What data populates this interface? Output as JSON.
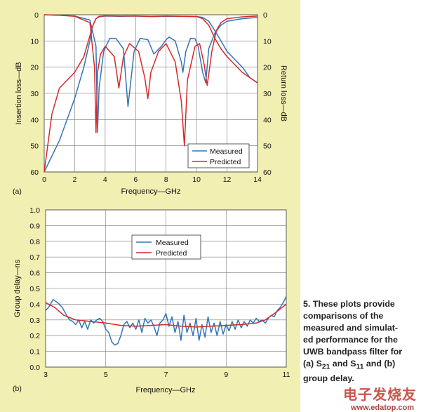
{
  "colors": {
    "measured": "#3374b8",
    "predicted": "#d62a2a",
    "panel": "#f2efb2",
    "grid": "#777777"
  },
  "caption": {
    "lines": [
      "5. These plots provide",
      "comparisons of the",
      "measured and simulat-",
      "ed performance for the",
      "UWB bandpass filter for"
    ],
    "last_a": "(a) S",
    "sub21": "21",
    "and": " and S",
    "sub11": "11",
    "last_b": " and (b)",
    "final": "group delay."
  },
  "watermark": {
    "main": "电子发烧友",
    "url": "www.edatop.com"
  },
  "chart_data": [
    {
      "id": "a",
      "type": "line",
      "panel_label": "(a)",
      "xlabel": "Frequency—GHz",
      "ylabel_left": "Insertion loss—dB",
      "ylabel_right": "Return loss—dB",
      "xlim": [
        0,
        14
      ],
      "ylim": [
        0,
        60
      ],
      "y_inverted": true,
      "xticks": [
        0,
        2,
        4,
        6,
        8,
        10,
        12,
        14
      ],
      "yticks": [
        0,
        10,
        20,
        30,
        40,
        50,
        60
      ],
      "grid": true,
      "legend": {
        "position": "bottom-right",
        "entries": [
          "Measured",
          "Predicted"
        ]
      },
      "series": [
        {
          "name": "Measured S21",
          "role": "measured",
          "x": [
            0,
            1,
            2,
            2.6,
            3,
            3.2,
            3.4,
            3.6,
            4,
            5,
            6,
            7,
            8,
            9,
            10,
            10.4,
            10.8,
            11.2,
            11.6,
            12,
            12.5,
            13,
            13.5,
            14
          ],
          "y": [
            60,
            48,
            32,
            20,
            10,
            4,
            1.5,
            0.8,
            0.5,
            0.6,
            0.5,
            0.7,
            0.6,
            0.6,
            0.7,
            1,
            2.5,
            6,
            10,
            14,
            17,
            20,
            24,
            26
          ]
        },
        {
          "name": "Predicted S21",
          "role": "predicted",
          "x": [
            0,
            0.5,
            1,
            2,
            2.6,
            3,
            3.2,
            3.4,
            3.6,
            4,
            5,
            6,
            7,
            8,
            9,
            10,
            10.4,
            10.8,
            11.2,
            11.6,
            12,
            12.5,
            13,
            13.5,
            14
          ],
          "y": [
            60,
            38,
            28,
            22,
            16,
            8,
            4,
            1.5,
            0.6,
            0.4,
            0.5,
            0.5,
            0.6,
            0.5,
            0.6,
            0.7,
            1.5,
            4,
            9,
            13,
            16,
            19,
            22,
            24,
            26
          ]
        },
        {
          "name": "Measured S11",
          "role": "measured",
          "x": [
            0,
            1,
            2,
            3,
            3.4,
            3.5,
            3.6,
            3.9,
            4.3,
            4.7,
            5.2,
            5.5,
            5.9,
            6.3,
            6.8,
            7.2,
            7.7,
            8,
            8.2,
            8.6,
            9,
            9.1,
            9.3,
            9.6,
            9.9,
            10.1,
            10.4,
            10.6,
            10.8,
            11.2,
            11.6,
            12,
            13,
            14
          ],
          "y": [
            0,
            0.2,
            0.5,
            2,
            12,
            45,
            28,
            14,
            9,
            9,
            13,
            35,
            14,
            9,
            9.5,
            15,
            12,
            9.5,
            8.5,
            10,
            18,
            22,
            14,
            9,
            9.2,
            12,
            22,
            26,
            13,
            7,
            4,
            2.5,
            1.5,
            1
          ]
        },
        {
          "name": "Predicted S11",
          "role": "predicted",
          "x": [
            0,
            1,
            2,
            3,
            3.3,
            3.4,
            3.5,
            3.7,
            4,
            4.6,
            4.9,
            5.2,
            5.6,
            6.2,
            6.6,
            6.8,
            7,
            7.5,
            8,
            8.6,
            9,
            9.2,
            9.4,
            9.9,
            10.2,
            10.5,
            10.7,
            11,
            11.3,
            11.6,
            12,
            13,
            14
          ],
          "y": [
            0,
            0.2,
            0.6,
            3,
            20,
            45,
            22,
            15,
            12,
            16,
            28,
            16,
            11,
            14,
            24,
            32,
            22,
            14,
            11,
            18,
            33,
            50,
            25,
            12,
            11,
            19,
            27,
            14,
            6,
            3,
            1.5,
            0.8,
            0.5
          ]
        }
      ]
    },
    {
      "id": "b",
      "type": "line",
      "panel_label": "(b)",
      "xlabel": "Frequency—GHz",
      "ylabel": "Group delay—ns",
      "xlim": [
        3,
        11
      ],
      "ylim": [
        0,
        1
      ],
      "xticks": [
        3,
        5,
        7,
        9,
        11
      ],
      "yticks": [
        0.0,
        0.1,
        0.2,
        0.3,
        0.4,
        0.5,
        0.6,
        0.7,
        0.8,
        0.9,
        1.0
      ],
      "grid": true,
      "legend": {
        "position": "upper-center",
        "entries": [
          "Measured",
          "Predicted"
        ]
      },
      "series": [
        {
          "name": "Measured",
          "role": "measured",
          "x": [
            3,
            3.1,
            3.25,
            3.4,
            3.55,
            3.7,
            3.8,
            3.9,
            4,
            4.1,
            4.2,
            4.3,
            4.4,
            4.5,
            4.6,
            4.7,
            4.8,
            4.9,
            5,
            5.1,
            5.2,
            5.3,
            5.4,
            5.5,
            5.6,
            5.7,
            5.8,
            5.9,
            6,
            6.1,
            6.2,
            6.3,
            6.4,
            6.5,
            6.6,
            6.7,
            6.8,
            6.9,
            7,
            7.1,
            7.2,
            7.3,
            7.4,
            7.5,
            7.6,
            7.7,
            7.8,
            7.9,
            8,
            8.1,
            8.2,
            8.3,
            8.4,
            8.5,
            8.6,
            8.7,
            8.8,
            8.9,
            9,
            9.1,
            9.2,
            9.3,
            9.4,
            9.5,
            9.6,
            9.7,
            9.8,
            9.9,
            10,
            10.1,
            10.2,
            10.3,
            10.4,
            10.5,
            10.6,
            10.7,
            10.8,
            10.9,
            11
          ],
          "y": [
            0.36,
            0.38,
            0.43,
            0.41,
            0.38,
            0.33,
            0.3,
            0.29,
            0.27,
            0.3,
            0.25,
            0.29,
            0.24,
            0.3,
            0.28,
            0.3,
            0.31,
            0.29,
            0.24,
            0.22,
            0.16,
            0.14,
            0.15,
            0.2,
            0.27,
            0.29,
            0.25,
            0.28,
            0.24,
            0.3,
            0.22,
            0.31,
            0.28,
            0.3,
            0.26,
            0.2,
            0.28,
            0.3,
            0.34,
            0.26,
            0.32,
            0.22,
            0.29,
            0.17,
            0.33,
            0.22,
            0.28,
            0.2,
            0.31,
            0.17,
            0.27,
            0.19,
            0.32,
            0.22,
            0.28,
            0.2,
            0.29,
            0.21,
            0.27,
            0.23,
            0.29,
            0.24,
            0.3,
            0.25,
            0.29,
            0.26,
            0.3,
            0.28,
            0.31,
            0.29,
            0.3,
            0.28,
            0.31,
            0.33,
            0.32,
            0.36,
            0.38,
            0.41,
            0.45
          ]
        },
        {
          "name": "Predicted",
          "role": "predicted",
          "x": [
            3,
            3.3,
            3.6,
            4,
            4.5,
            5,
            5.5,
            6,
            6.5,
            7,
            7.5,
            8,
            8.5,
            9,
            9.5,
            10,
            10.3,
            10.6,
            10.8,
            11
          ],
          "y": [
            0.41,
            0.38,
            0.33,
            0.3,
            0.29,
            0.28,
            0.265,
            0.26,
            0.265,
            0.27,
            0.26,
            0.255,
            0.26,
            0.265,
            0.27,
            0.28,
            0.3,
            0.34,
            0.37,
            0.4
          ]
        }
      ]
    }
  ]
}
